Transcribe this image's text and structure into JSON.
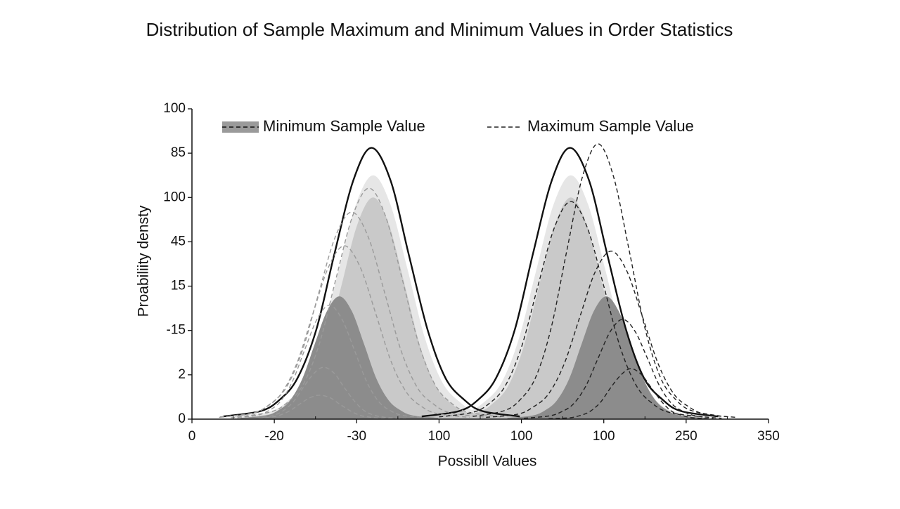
{
  "chart_data": {
    "type": "area",
    "title": "Distribution of Sample Maximum and Minimum Values in Order Statistics",
    "xlabel": "Possibll Values",
    "ylabel": "Proabiliity densty",
    "xlim": [
      0,
      7
    ],
    "ylim": [
      0,
      7
    ],
    "xticks": [
      0,
      {
        "value": 1,
        "label": "-20"
      },
      {
        "value": 2,
        "label": "-30"
      },
      {
        "value": 3,
        "label": "100"
      },
      {
        "value": 4,
        "label": "100"
      },
      {
        "value": 5,
        "label": "100"
      },
      {
        "value": 6,
        "label": "250"
      },
      {
        "value": 7,
        "label": "350"
      }
    ],
    "yticks": [
      0,
      {
        "value": 1,
        "label": "2"
      },
      {
        "value": 2,
        "label": "-15"
      },
      {
        "value": 3,
        "label": "15"
      },
      {
        "value": 4,
        "label": "45"
      },
      {
        "value": 5,
        "label": "100"
      },
      {
        "value": 6,
        "label": "85"
      },
      {
        "value": 7,
        "label": "100"
      }
    ],
    "legend": "top",
    "series": [
      {
        "name": "Minimum Sample Value",
        "color": "#9a9a9a",
        "curves": [
          {
            "fill": "#e6e6e6",
            "x": [
              0.52,
              0.94,
              1.15,
              1.36,
              1.57,
              1.78,
              1.99,
              2.2,
              2.41,
              2.62,
              2.83,
              3.04,
              3.25,
              3.46,
              3.88
            ],
            "values": [
              0.06,
              0.17,
              0.39,
              0.83,
              1.82,
              3.36,
              4.84,
              5.5,
              4.84,
              3.36,
              1.82,
              0.83,
              0.39,
              0.17,
              0.06
            ]
          },
          {
            "fill": "#e6e6e6",
            "x": [
              2.92,
              3.34,
              3.55,
              3.76,
              3.97,
              4.18,
              4.39,
              4.6,
              4.81,
              5.02,
              5.23,
              5.44,
              5.65,
              5.86,
              6.28
            ],
            "values": [
              0.06,
              0.17,
              0.39,
              0.83,
              1.82,
              3.36,
              4.84,
              5.5,
              4.84,
              3.36,
              1.82,
              0.83,
              0.39,
              0.17,
              0.06
            ]
          },
          {
            "fill": "#c9c9c9",
            "x": [
              0.68,
              1.06,
              1.25,
              1.44,
              1.63,
              1.82,
              2.01,
              2.2,
              2.39,
              2.58,
              2.77,
              2.96,
              3.15,
              3.34,
              3.72
            ],
            "values": [
              0.05,
              0.15,
              0.35,
              0.75,
              1.65,
              3.05,
              4.4,
              5,
              4.4,
              3.05,
              1.65,
              0.75,
              0.35,
              0.15,
              0.05
            ]
          },
          {
            "fill": "#c9c9c9",
            "x": [
              3.08,
              3.46,
              3.65,
              3.84,
              4.03,
              4.22,
              4.41,
              4.6,
              4.79,
              4.98,
              5.17,
              5.36,
              5.55,
              5.74,
              6.12
            ],
            "values": [
              0.05,
              0.15,
              0.35,
              0.75,
              1.65,
              3.05,
              4.4,
              5,
              4.4,
              3.05,
              1.65,
              0.75,
              0.35,
              0.15,
              0.05
            ]
          },
          {
            "fill": "#8c8c8c",
            "x": [
              0.59,
              0.89,
              1.04,
              1.19,
              1.34,
              1.49,
              1.64,
              1.79,
              1.94,
              2.09,
              2.24,
              2.39,
              2.54,
              2.69,
              2.99
            ],
            "values": [
              0.03,
              0.08,
              0.19,
              0.42,
              0.91,
              1.69,
              2.44,
              2.77,
              2.44,
              1.69,
              0.91,
              0.42,
              0.19,
              0.08,
              0.03
            ]
          },
          {
            "fill": "#8c8c8c",
            "x": [
              3.83,
              4.13,
              4.28,
              4.43,
              4.58,
              4.73,
              4.88,
              5.03,
              5.18,
              5.33,
              5.48,
              5.63,
              5.78,
              5.93,
              6.23
            ],
            "values": [
              0.03,
              0.08,
              0.19,
              0.42,
              0.91,
              1.69,
              2.44,
              2.77,
              2.44,
              1.69,
              0.91,
              0.42,
              0.19,
              0.08,
              0.03
            ]
          },
          {
            "x": [
              0.55,
              0.95,
              1.15,
              1.35,
              1.55,
              1.75,
              1.95,
              2.15,
              2.35,
              2.55,
              2.75,
              2.95,
              3.15,
              3.35,
              3.75
            ],
            "values": [
              0.05,
              0.16,
              0.36,
              0.78,
              1.72,
              3.18,
              4.58,
              5.21,
              4.58,
              3.18,
              1.72,
              0.78,
              0.36,
              0.16,
              0.05
            ]
          },
          {
            "x": [
              0.34,
              0.74,
              0.94,
              1.14,
              1.34,
              1.54,
              1.74,
              1.94,
              2.14,
              2.34,
              2.54,
              2.74,
              2.94,
              3.14,
              3.54
            ],
            "values": [
              0.05,
              0.14,
              0.33,
              0.7,
              1.54,
              2.85,
              4.11,
              4.67,
              4.11,
              2.85,
              1.54,
              0.7,
              0.33,
              0.14,
              0.05
            ]
          },
          {
            "x": [
              0.33,
              0.71,
              0.9,
              1.09,
              1.28,
              1.47,
              1.66,
              1.85,
              2.04,
              2.23,
              2.42,
              2.61,
              2.8,
              2.99,
              3.37
            ],
            "values": [
              0.04,
              0.12,
              0.27,
              0.59,
              1.29,
              2.39,
              3.44,
              3.91,
              3.44,
              2.39,
              1.29,
              0.59,
              0.27,
              0.12,
              0.04
            ]
          },
          {
            "x": [
              0.47,
              0.77,
              0.92,
              1.07,
              1.22,
              1.37,
              1.52,
              1.67,
              1.82,
              1.97,
              2.12,
              2.27,
              2.42,
              2.57,
              2.87
            ],
            "values": [
              0.03,
              0.08,
              0.18,
              0.39,
              0.85,
              1.57,
              2.26,
              2.57,
              2.26,
              1.57,
              0.85,
              0.39,
              0.18,
              0.08,
              0.03
            ]
          },
          {
            "x": [
              0.6,
              0.85,
              0.98,
              1.1,
              1.23,
              1.35,
              1.48,
              1.6,
              1.73,
              1.85,
              1.98,
              2.1,
              2.23,
              2.35,
              2.6
            ],
            "values": [
              0.01,
              0.04,
              0.08,
              0.18,
              0.39,
              0.71,
              1.03,
              1.17,
              1.03,
              0.71,
              0.39,
              0.18,
              0.08,
              0.04,
              0.01
            ]
          },
          {
            "x": [
              0.55,
              0.8,
              0.93,
              1.05,
              1.18,
              1.3,
              1.43,
              1.55,
              1.68,
              1.8,
              1.93,
              2.05,
              2.18,
              2.3,
              2.55
            ],
            "values": [
              0.01,
              0.02,
              0.04,
              0.08,
              0.18,
              0.33,
              0.48,
              0.54,
              0.48,
              0.33,
              0.18,
              0.08,
              0.04,
              0.02,
              0.01
            ]
          }
        ]
      },
      {
        "name": "Maximum Sample Value",
        "color": "#222222",
        "curves": [
          {
            "x": [
              3.0,
              3.4,
              3.6,
              3.8,
              4.0,
              4.2,
              4.4,
              4.6,
              4.8,
              5.0,
              5.2,
              5.4,
              5.6,
              5.8,
              6.2
            ],
            "values": [
              0.05,
              0.15,
              0.34,
              0.74,
              1.62,
              3.0,
              4.32,
              4.91,
              4.32,
              3.0,
              1.62,
              0.74,
              0.34,
              0.15,
              0.05
            ]
          },
          {
            "x": [
              3.41,
              3.79,
              3.98,
              4.17,
              4.36,
              4.55,
              4.74,
              4.93,
              5.12,
              5.31,
              5.5,
              5.69,
              5.88,
              6.07,
              6.45
            ],
            "values": [
              0.06,
              0.19,
              0.43,
              0.93,
              2.05,
              3.79,
              5.46,
              6.21,
              5.46,
              3.79,
              2.05,
              0.93,
              0.43,
              0.19,
              0.06
            ]
          },
          {
            "x": [
              3.57,
              3.95,
              4.14,
              4.33,
              4.52,
              4.71,
              4.9,
              5.09,
              5.28,
              5.47,
              5.66,
              5.85,
              6.04,
              6.23,
              6.61
            ],
            "values": [
              0.04,
              0.11,
              0.27,
              0.57,
              1.25,
              2.31,
              3.34,
              3.79,
              3.34,
              2.31,
              1.25,
              0.57,
              0.27,
              0.11,
              0.04
            ]
          },
          {
            "x": [
              4.03,
              4.33,
              4.48,
              4.63,
              4.78,
              4.93,
              5.08,
              5.23,
              5.38,
              5.53,
              5.68,
              5.83,
              5.98,
              6.13,
              6.43
            ],
            "values": [
              0.02,
              0.07,
              0.16,
              0.34,
              0.74,
              1.37,
              1.98,
              2.25,
              1.98,
              1.37,
              0.74,
              0.34,
              0.16,
              0.07,
              0.02
            ]
          },
          {
            "x": [
              4.33,
              4.58,
              4.71,
              4.83,
              4.96,
              5.08,
              5.21,
              5.33,
              5.46,
              5.58,
              5.71,
              5.83,
              5.96,
              6.08,
              6.33
            ],
            "values": [
              0.01,
              0.03,
              0.08,
              0.17,
              0.38,
              0.7,
              1.0,
              1.14,
              1.0,
              0.7,
              0.38,
              0.17,
              0.08,
              0.03,
              0.01
            ]
          }
        ]
      }
    ],
    "outlines": [
      {
        "color": "#111111",
        "x": [
          0.38,
          0.83,
          1.06,
          1.28,
          1.51,
          1.73,
          1.96,
          2.18,
          2.41,
          2.63,
          2.86,
          3.08,
          3.31,
          3.53,
          3.98
        ],
        "values": [
          0.06,
          0.18,
          0.43,
          0.92,
          2.02,
          3.73,
          5.39,
          6.12,
          5.39,
          3.73,
          2.02,
          0.92,
          0.43,
          0.18,
          0.06
        ]
      },
      {
        "color": "#111111",
        "x": [
          2.79,
          3.24,
          3.47,
          3.69,
          3.92,
          4.14,
          4.37,
          4.59,
          4.82,
          5.04,
          5.27,
          5.49,
          5.72,
          5.94,
          6.39
        ],
        "values": [
          0.06,
          0.18,
          0.43,
          0.92,
          2.02,
          3.73,
          5.39,
          6.12,
          5.39,
          3.73,
          2.02,
          0.92,
          0.43,
          0.18,
          0.06
        ]
      }
    ]
  }
}
